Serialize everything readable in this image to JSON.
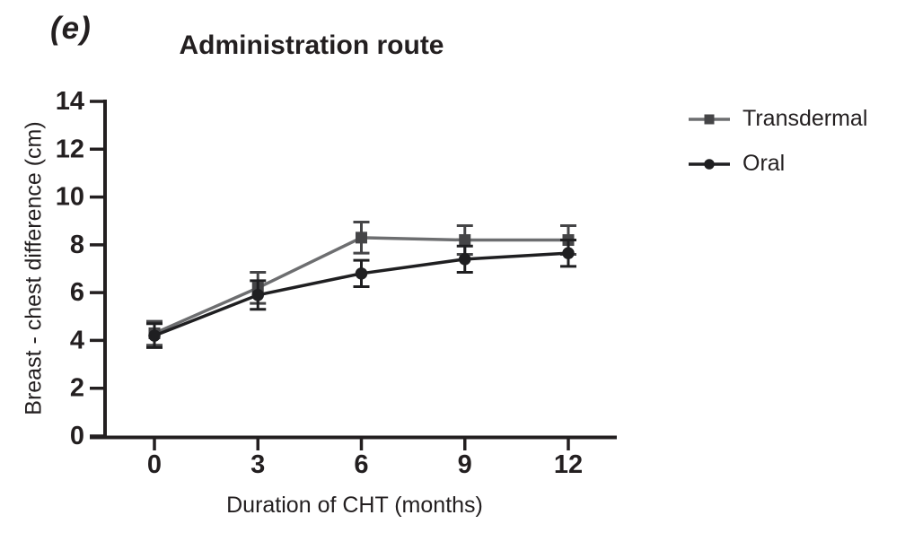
{
  "figure": {
    "panel_label": "(e)"
  },
  "colors": {
    "background": "#ffffff",
    "axis": "#231f20",
    "text": "#231f20",
    "transdermal": "#6d6e70",
    "oral": "#1f1f21"
  },
  "chart_data": {
    "type": "line",
    "title": "Administration route",
    "xlabel": "Duration of CHT (months)",
    "ylabel": "Breast - chest difference (cm)",
    "x": [
      0,
      3,
      6,
      9,
      12
    ],
    "xticks": [
      0,
      3,
      6,
      9,
      12
    ],
    "ylim": [
      0,
      14
    ],
    "yticks": [
      0,
      2,
      4,
      6,
      8,
      10,
      12,
      14
    ],
    "grid": false,
    "error_bars": "sem",
    "legend_position": "right-top",
    "series": [
      {
        "name": "Transdermal",
        "marker": "square",
        "color": "#6d6e70",
        "marker_color": "#454547",
        "values": [
          4.3,
          6.2,
          8.3,
          8.2,
          8.2
        ],
        "errors": [
          0.5,
          0.65,
          0.65,
          0.6,
          0.6
        ]
      },
      {
        "name": "Oral",
        "marker": "circle",
        "color": "#1f1f21",
        "marker_color": "#1f1f21",
        "values": [
          4.2,
          5.9,
          6.8,
          7.4,
          7.65
        ],
        "errors": [
          0.5,
          0.6,
          0.55,
          0.55,
          0.55
        ]
      }
    ]
  }
}
